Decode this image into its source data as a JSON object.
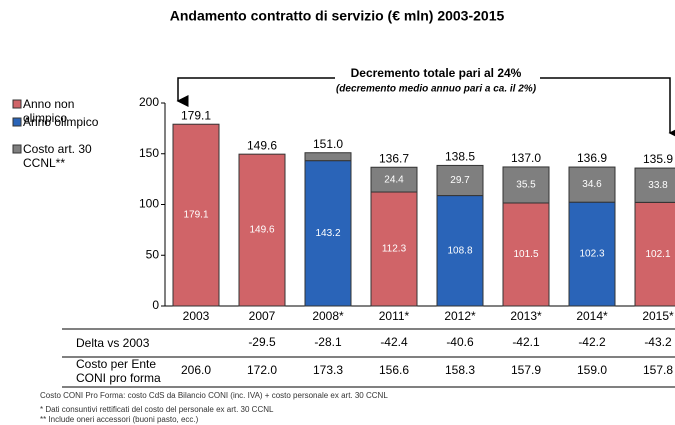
{
  "chart_data": {
    "type": "stacked-bar",
    "title": "Andamento contratto di servizio (€ mln) 2003-2015",
    "annotation": "Decremento totale pari al 24%",
    "annotation_sub": "(decremento medio annuo pari a ca. il 2%)",
    "categories": [
      "2003",
      "2007",
      "2008*",
      "2011*",
      "2012*",
      "2013*",
      "2014*",
      "2015*"
    ],
    "series": [
      {
        "name": "Anno non olimpico",
        "color": "#d06468",
        "values": [
          179.1,
          149.6,
          null,
          112.3,
          null,
          101.5,
          null,
          102.1
        ]
      },
      {
        "name": "Anno olimpico",
        "color": "#2a64b8",
        "values": [
          null,
          null,
          143.2,
          null,
          108.8,
          null,
          102.3,
          null
        ]
      },
      {
        "name": "Costo art. 30 CCNL**",
        "color": "#7f7f7f",
        "values": [
          null,
          null,
          7.8,
          24.4,
          29.7,
          35.5,
          34.6,
          33.8
        ]
      }
    ],
    "totals": [
      179.1,
      149.6,
      151,
      136.7,
      138.5,
      137,
      136.9,
      135.9
    ],
    "totals_labels": [
      "179.1",
      "149.6",
      "151.0",
      "136.7",
      "138.5",
      "137.0",
      "136.9",
      "135.9"
    ],
    "ylim": [
      0,
      200
    ],
    "yticks": [
      0,
      50,
      100,
      150,
      200
    ]
  },
  "table": {
    "rows": [
      {
        "label": "Delta vs 2003",
        "cells": [
          null,
          "-29.5",
          "-28.1",
          "-42.4",
          "-40.6",
          "-42.1",
          "-42.2",
          "-43.2"
        ]
      },
      {
        "label": "Costo per Ente CONI pro forma",
        "cells": [
          "206.0",
          "172.0",
          "173.3",
          "156.6",
          "158.3",
          "157.9",
          "159.0",
          "157.8"
        ]
      }
    ]
  },
  "footnotes": [
    "Costo CONI Pro Forma: costo CdS da Bilancio CONI (inc. IVA) + costo personale ex art. 30 CCNL",
    "* Dati consuntivi rettificati del costo del personale ex art. 30 CCNL",
    "** Include oneri accessori (buoni pasto, ecc.)"
  ]
}
